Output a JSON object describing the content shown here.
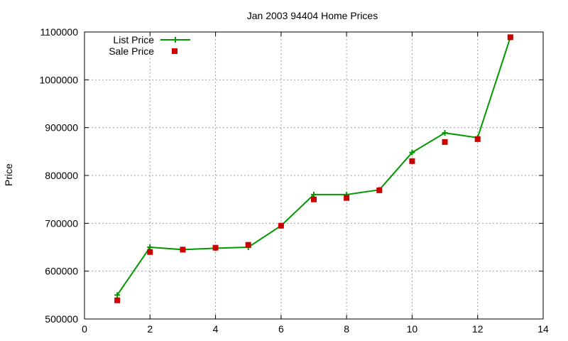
{
  "chart_data": {
    "type": "line",
    "title": "Jan 2003 94404 Home Prices",
    "xlabel": "",
    "ylabel": "Price",
    "xlim": [
      0,
      14
    ],
    "ylim": [
      500000,
      1100000
    ],
    "x_ticks": [
      "0",
      "2",
      "4",
      "6",
      "8",
      "10",
      "12",
      "14"
    ],
    "y_ticks": [
      "500000",
      "600000",
      "700000",
      "800000",
      "900000",
      "1000000",
      "1100000"
    ],
    "grid": true,
    "legend": "top-left",
    "series": [
      {
        "name": "List Price",
        "style": "lines+points",
        "color": "#009900",
        "x": [
          1,
          2,
          3,
          4,
          5,
          6,
          7,
          8,
          9,
          10,
          11,
          12,
          13
        ],
        "values": [
          550000,
          650000,
          645000,
          648000,
          650000,
          695000,
          760000,
          760000,
          770000,
          848000,
          889000,
          879000,
          1089000
        ]
      },
      {
        "name": "Sale Price",
        "style": "points",
        "color": "#cc0000",
        "x": [
          1,
          2,
          3,
          4,
          5,
          6,
          7,
          8,
          9,
          10,
          11,
          12,
          13
        ],
        "values": [
          539000,
          640000,
          645000,
          649000,
          655000,
          695000,
          750000,
          753000,
          769000,
          830000,
          870000,
          876000,
          1089000
        ]
      }
    ]
  }
}
